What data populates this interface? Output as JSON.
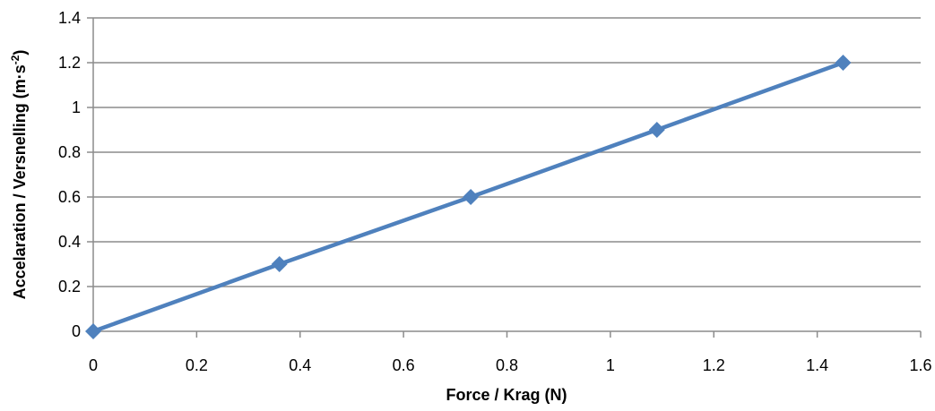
{
  "chart_data": {
    "type": "line",
    "title": "",
    "xlabel": "Force / Krag (N)",
    "ylabel": {
      "main": "Accelaration / Versnelling (m·s",
      "superscript": "-2",
      "close": ")"
    },
    "xlim": [
      0,
      1.6
    ],
    "ylim": [
      0,
      1.4
    ],
    "x_ticks": [
      "0",
      "0.2",
      "0.4",
      "0.6",
      "0.8",
      "1",
      "1.2",
      "1.4",
      "1.6"
    ],
    "y_ticks": [
      "0",
      "0.2",
      "0.4",
      "0.6",
      "0.8",
      "1",
      "1.2",
      "1.4"
    ],
    "grid": "horizontal",
    "legend": "none",
    "marker": "diamond",
    "series": [
      {
        "x": [
          0,
          0.36,
          0.73,
          1.09,
          1.45
        ],
        "y": [
          0,
          0.3,
          0.6,
          0.9,
          1.2
        ],
        "color": "#4F81BD"
      }
    ],
    "colors": {
      "grid": "#8c8c8c",
      "axis": "#8c8c8c",
      "series": "#4F81BD"
    }
  }
}
